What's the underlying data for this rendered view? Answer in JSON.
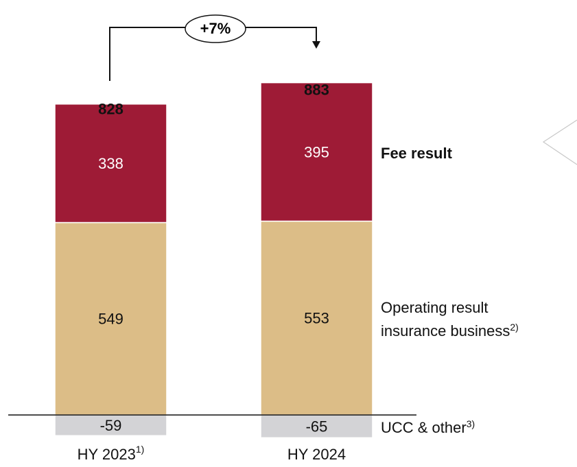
{
  "chart_data": {
    "type": "stacked_bar",
    "categories": [
      "HY 2023",
      "HY 2024"
    ],
    "category_notes": [
      "1)",
      null
    ],
    "series": [
      {
        "name": "UCC & other",
        "note": "3)",
        "color": "#d3d3d6",
        "values": [
          -59,
          -65
        ],
        "label_color": "#111111"
      },
      {
        "name": "Operating result insurance business",
        "note": "2)",
        "color": "#dcbd87",
        "values": [
          549,
          553
        ],
        "label_color": "#111111"
      },
      {
        "name": "Fee result",
        "bold": true,
        "color": "#9e1b36",
        "values": [
          338,
          395
        ],
        "label_color": "#ffffff"
      }
    ],
    "totals": [
      828,
      883
    ],
    "annotation": "+7%",
    "ylim": [
      -80,
      1000
    ]
  }
}
